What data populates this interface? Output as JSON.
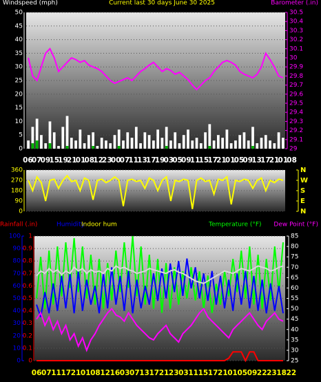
{
  "chart_data": [
    {
      "type": "bar-line",
      "title": "Current last 30 days June 30 2025",
      "title_color": "#ffff00",
      "ylim": [
        0,
        50
      ],
      "yticks": [
        0,
        5,
        10,
        15,
        20,
        25,
        30,
        35,
        40,
        45,
        50
      ],
      "y2lim": [
        29,
        30.5
      ],
      "y2ticks": [
        29,
        29.1,
        29.2,
        29.3,
        29.4,
        29.5,
        29.6,
        29.7,
        29.8,
        29.9,
        30,
        30.1,
        30.2,
        30.3,
        30.4,
        30.5
      ],
      "grid": true,
      "xtick_labels": [
        "06",
        "07",
        "09",
        "15",
        "19",
        "21",
        "01",
        "08",
        "12",
        "23",
        "00",
        "07",
        "11",
        "13",
        "17",
        "19",
        "03",
        "05",
        "09",
        "11",
        "15",
        "17",
        "21",
        "01",
        "05",
        "09",
        "13",
        "17",
        "21",
        "01",
        "08"
      ],
      "series": [
        {
          "name": "Windspeed (mph)",
          "color": "#ffffff",
          "mark": "bar",
          "axis": "y",
          "values": [
            3,
            8,
            11,
            5,
            2,
            10,
            6,
            1,
            8,
            12,
            4,
            3,
            7,
            2,
            5,
            6,
            1,
            4,
            3,
            2,
            5,
            7,
            3,
            6,
            4,
            8,
            2,
            6,
            5,
            3,
            7,
            4,
            8,
            3,
            6,
            2,
            5,
            7,
            3,
            4,
            2,
            6,
            9,
            3,
            5,
            4,
            7,
            2,
            3,
            5,
            6,
            3,
            8,
            2,
            4,
            5,
            3,
            2,
            6,
            4
          ]
        },
        {
          "color": "#00b400",
          "mark": "bar",
          "axis": "y",
          "values": [
            0,
            2,
            3,
            0,
            0,
            2,
            0,
            0,
            0,
            1,
            0,
            0,
            0,
            0,
            0,
            1,
            0,
            0,
            0,
            0,
            0,
            1,
            0,
            0,
            0,
            0,
            0,
            0,
            0,
            0,
            0,
            0,
            1,
            0,
            0,
            0,
            0,
            0,
            0,
            0,
            0,
            0,
            1,
            0,
            0,
            0,
            0,
            0,
            0,
            0,
            0,
            0,
            1,
            0,
            0,
            0,
            0,
            0,
            0,
            0
          ]
        },
        {
          "name": "Barometer (.in)",
          "color": "#ff00ff",
          "mark": "line",
          "axis": "y2",
          "values": [
            30.0,
            29.8,
            29.75,
            29.9,
            30.05,
            30.1,
            30.0,
            29.85,
            29.9,
            29.95,
            30.0,
            29.98,
            29.95,
            29.97,
            29.92,
            29.9,
            29.88,
            29.85,
            29.8,
            29.75,
            29.72,
            29.74,
            29.76,
            29.78,
            29.75,
            29.8,
            29.85,
            29.88,
            29.92,
            29.95,
            29.9,
            29.85,
            29.88,
            29.86,
            29.82,
            29.84,
            29.8,
            29.76,
            29.7,
            29.65,
            29.7,
            29.75,
            29.78,
            29.85,
            29.9,
            29.95,
            29.97,
            29.95,
            29.92,
            29.85,
            29.82,
            29.8,
            29.78,
            29.82,
            29.9,
            30.05,
            29.98,
            29.9,
            29.8,
            29.78
          ]
        }
      ]
    },
    {
      "type": "line",
      "ylim": [
        0,
        360
      ],
      "yticks": [
        0,
        90,
        180,
        270,
        360
      ],
      "grid": true,
      "y2ticks": [
        {
          "value": 360,
          "label": "N"
        },
        {
          "value": 270,
          "label": "W"
        },
        {
          "value": 180,
          "label": "S"
        },
        {
          "value": 90,
          "label": "E"
        },
        {
          "value": 0,
          "label": "N"
        }
      ],
      "series": [
        {
          "color": "#ffff00",
          "mark": "line",
          "axis": "y",
          "values": [
            270,
            180,
            300,
            250,
            90,
            270,
            280,
            200,
            270,
            310,
            260,
            270,
            180,
            290,
            270,
            100,
            270,
            280,
            250,
            270,
            300,
            270,
            45,
            270,
            280,
            260,
            270,
            200,
            290,
            270,
            180,
            270,
            300,
            90,
            270,
            260,
            280,
            270,
            20,
            270,
            290,
            260,
            270,
            150,
            280,
            270,
            300,
            60,
            270,
            260,
            280,
            270,
            200,
            270,
            290,
            180,
            270,
            250,
            280,
            270
          ]
        }
      ]
    },
    {
      "type": "line",
      "ylim": [
        0,
        1
      ],
      "yticks": [
        0,
        0.1,
        0.2,
        0.3,
        0.4,
        0.5,
        0.6,
        0.7,
        0.8,
        0.9,
        1
      ],
      "y3lim": [
        0,
        100
      ],
      "y3ticks": [
        0,
        10,
        20,
        30,
        40,
        50,
        60,
        70,
        80,
        90,
        100
      ],
      "y2lim": [
        25,
        85
      ],
      "y2ticks": [
        25,
        30,
        35,
        40,
        45,
        50,
        55,
        60,
        65,
        70,
        75,
        80,
        85
      ],
      "grid": true,
      "xtick_labels": [
        "06",
        "07",
        "11",
        "17",
        "21",
        "01",
        "08",
        "12",
        "16",
        "03",
        "07",
        "13",
        "17",
        "21",
        "23",
        "03",
        "11",
        "15",
        "17",
        "21",
        "01",
        "05",
        "09",
        "22",
        "23",
        "18",
        "22"
      ],
      "series": [
        {
          "name": "Temperature (°F)",
          "color": "#00ff00",
          "mark": "line",
          "axis": "y2",
          "values": [
            55,
            75,
            50,
            78,
            52,
            80,
            56,
            82,
            60,
            84,
            58,
            80,
            55,
            76,
            52,
            74,
            50,
            72,
            54,
            78,
            58,
            82,
            60,
            85,
            56,
            80,
            52,
            76,
            50,
            74,
            48,
            72,
            50,
            70,
            52,
            68,
            55,
            70,
            54,
            68,
            50,
            66,
            48,
            62,
            52,
            68,
            56,
            74,
            58,
            78,
            55,
            80,
            52,
            76,
            50,
            74,
            54,
            80,
            58,
            82
          ]
        },
        {
          "name": "Humidity",
          "color": "#0000ff",
          "mark": "line",
          "axis": "y3",
          "values": [
            45,
            35,
            55,
            38,
            62,
            40,
            68,
            42,
            70,
            38,
            72,
            40,
            65,
            45,
            60,
            38,
            70,
            42,
            75,
            45,
            68,
            40,
            72,
            38,
            65,
            42,
            60,
            45,
            70,
            48,
            74,
            50,
            78,
            55,
            80,
            52,
            82,
            58,
            75,
            50,
            70,
            48,
            72,
            45,
            68,
            42,
            65,
            40,
            70,
            45,
            72,
            42,
            68,
            40,
            65,
            38,
            62,
            40,
            60,
            38
          ]
        },
        {
          "name": "Indoor hum",
          "color": "#d8d8d8",
          "label_color": "#ffff00",
          "mark": "line",
          "axis": "y3",
          "values": [
            68,
            72,
            70,
            74,
            71,
            73,
            69,
            72,
            70,
            75,
            72,
            74,
            70,
            73,
            71,
            72,
            70,
            74,
            72,
            76,
            74,
            75,
            73,
            72,
            70,
            71,
            72,
            74,
            73,
            72,
            71,
            70,
            72,
            73,
            71,
            70,
            68,
            66,
            64,
            63,
            62,
            64,
            66,
            68,
            70,
            72,
            71,
            70,
            72,
            74,
            73,
            72,
            74,
            76,
            75,
            74,
            72,
            73,
            75,
            76
          ]
        },
        {
          "name": "Dew Point (°F)",
          "color": "#ff00ff",
          "mark": "line",
          "axis": "y2",
          "values": [
            45,
            48,
            42,
            46,
            40,
            44,
            38,
            42,
            35,
            38,
            32,
            36,
            30,
            35,
            38,
            42,
            45,
            48,
            50,
            47,
            46,
            44,
            48,
            45,
            42,
            40,
            38,
            36,
            35,
            38,
            40,
            42,
            38,
            36,
            34,
            38,
            40,
            42,
            45,
            48,
            50,
            46,
            44,
            42,
            40,
            38,
            36,
            40,
            42,
            44,
            46,
            48,
            45,
            42,
            40,
            44,
            46,
            48,
            45,
            44
          ]
        },
        {
          "name": "Rainfall (.in)",
          "color": "#ff0000",
          "mark": "line",
          "axis": "y",
          "values": [
            0,
            0,
            0,
            0,
            0,
            0,
            0,
            0,
            0,
            0,
            0,
            0,
            0,
            0,
            0,
            0,
            0,
            0,
            0,
            0,
            0,
            0,
            0,
            0,
            0,
            0,
            0,
            0,
            0,
            0,
            0,
            0,
            0,
            0,
            0,
            0,
            0,
            0,
            0,
            0,
            0,
            0,
            0,
            0,
            0,
            0,
            0.02,
            0.07,
            0.07,
            0.07,
            0,
            0.07,
            0.07,
            0,
            0,
            0,
            0,
            0,
            0,
            0
          ]
        }
      ]
    }
  ]
}
